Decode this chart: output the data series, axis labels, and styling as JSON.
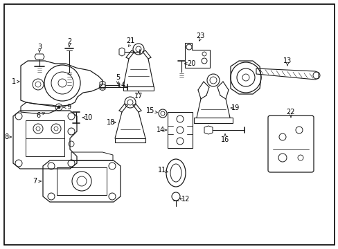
{
  "background_color": "#ffffff",
  "border_color": "#000000",
  "figsize": [
    4.89,
    3.6
  ],
  "dpi": 100,
  "line_color": "#1a1a1a",
  "text_color": "#000000",
  "label_fontsize": 7.0
}
